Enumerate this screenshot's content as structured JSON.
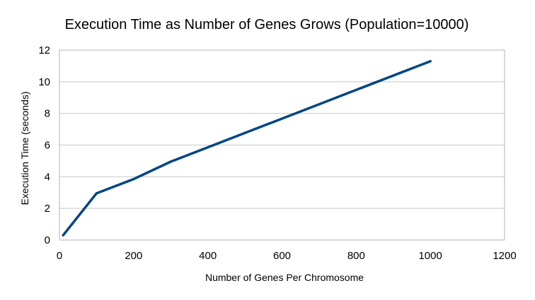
{
  "chart_data": {
    "type": "line",
    "title": "Execution Time as Number of Genes Grows (Population=10000)",
    "xlabel": "Number of Genes Per Chromosome",
    "ylabel": "Execution Time (seconds)",
    "xlim": [
      0,
      1200
    ],
    "ylim": [
      0,
      12
    ],
    "x_ticks": [
      0,
      200,
      400,
      600,
      800,
      1000,
      1200
    ],
    "y_ticks": [
      0,
      2,
      4,
      6,
      8,
      10,
      12
    ],
    "grid": true,
    "legend": "none",
    "series": [
      {
        "color": "#004586",
        "points": [
          {
            "x": 10,
            "y": 0.3
          },
          {
            "x": 100,
            "y": 2.95
          },
          {
            "x": 200,
            "y": 3.85
          },
          {
            "x": 300,
            "y": 4.95
          },
          {
            "x": 1000,
            "y": 11.3
          }
        ]
      }
    ]
  }
}
